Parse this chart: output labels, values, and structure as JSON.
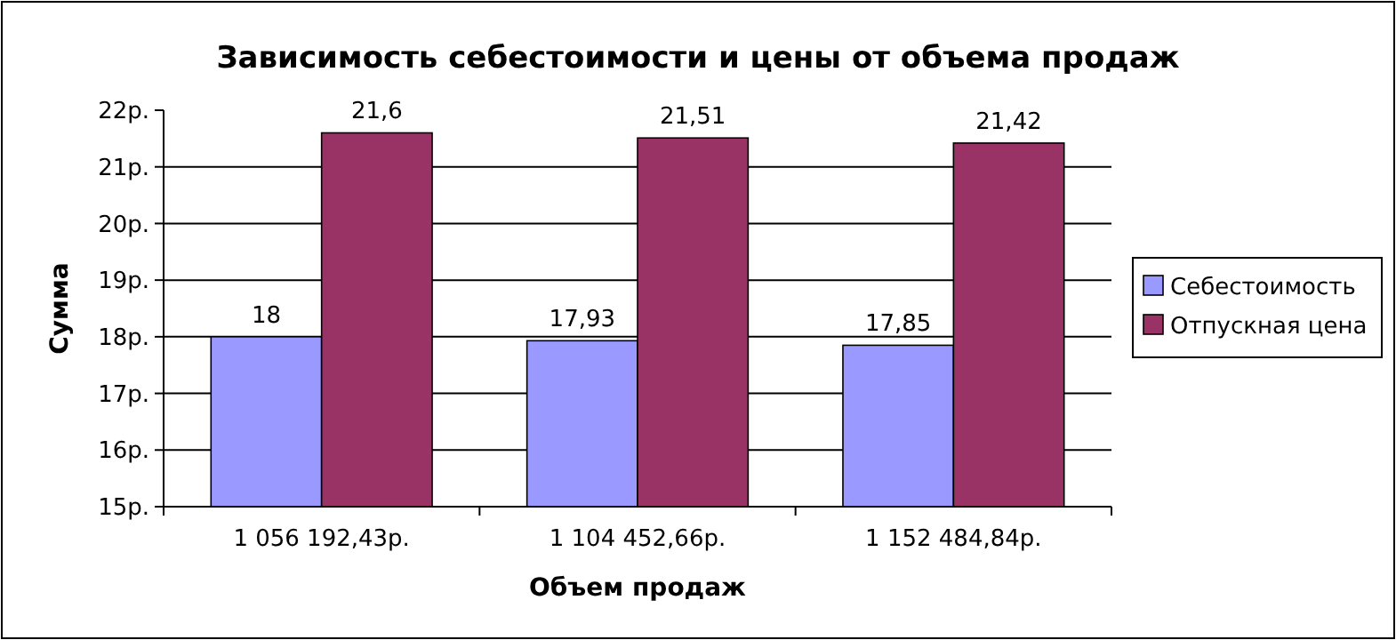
{
  "chart_data": {
    "type": "bar",
    "title": "Зависимость себестоимости и цены от объема продаж",
    "xlabel": "Объем продаж",
    "ylabel": "Сумма",
    "categories": [
      "1 056 192,43р.",
      "1 104 452,66р.",
      "1 152 484,84р."
    ],
    "series": [
      {
        "name": "Себестоимость",
        "color": "#9999ff",
        "values": [
          18,
          17.93,
          17.85
        ],
        "value_labels": [
          "18",
          "17,93",
          "17,85"
        ]
      },
      {
        "name": "Отпускная цена",
        "color": "#993366",
        "values": [
          21.6,
          21.51,
          21.42
        ],
        "value_labels": [
          "21,6",
          "21,51",
          "21,42"
        ]
      }
    ],
    "ylim": [
      15,
      22
    ],
    "yticks": [
      {
        "value": 15,
        "label": "15р."
      },
      {
        "value": 16,
        "label": "16р."
      },
      {
        "value": 17,
        "label": "17р."
      },
      {
        "value": 18,
        "label": "18р."
      },
      {
        "value": 19,
        "label": "19р."
      },
      {
        "value": 20,
        "label": "20р."
      },
      {
        "value": 21,
        "label": "21р."
      },
      {
        "value": 22,
        "label": "22р."
      }
    ],
    "grid": "y",
    "legend": "right"
  }
}
